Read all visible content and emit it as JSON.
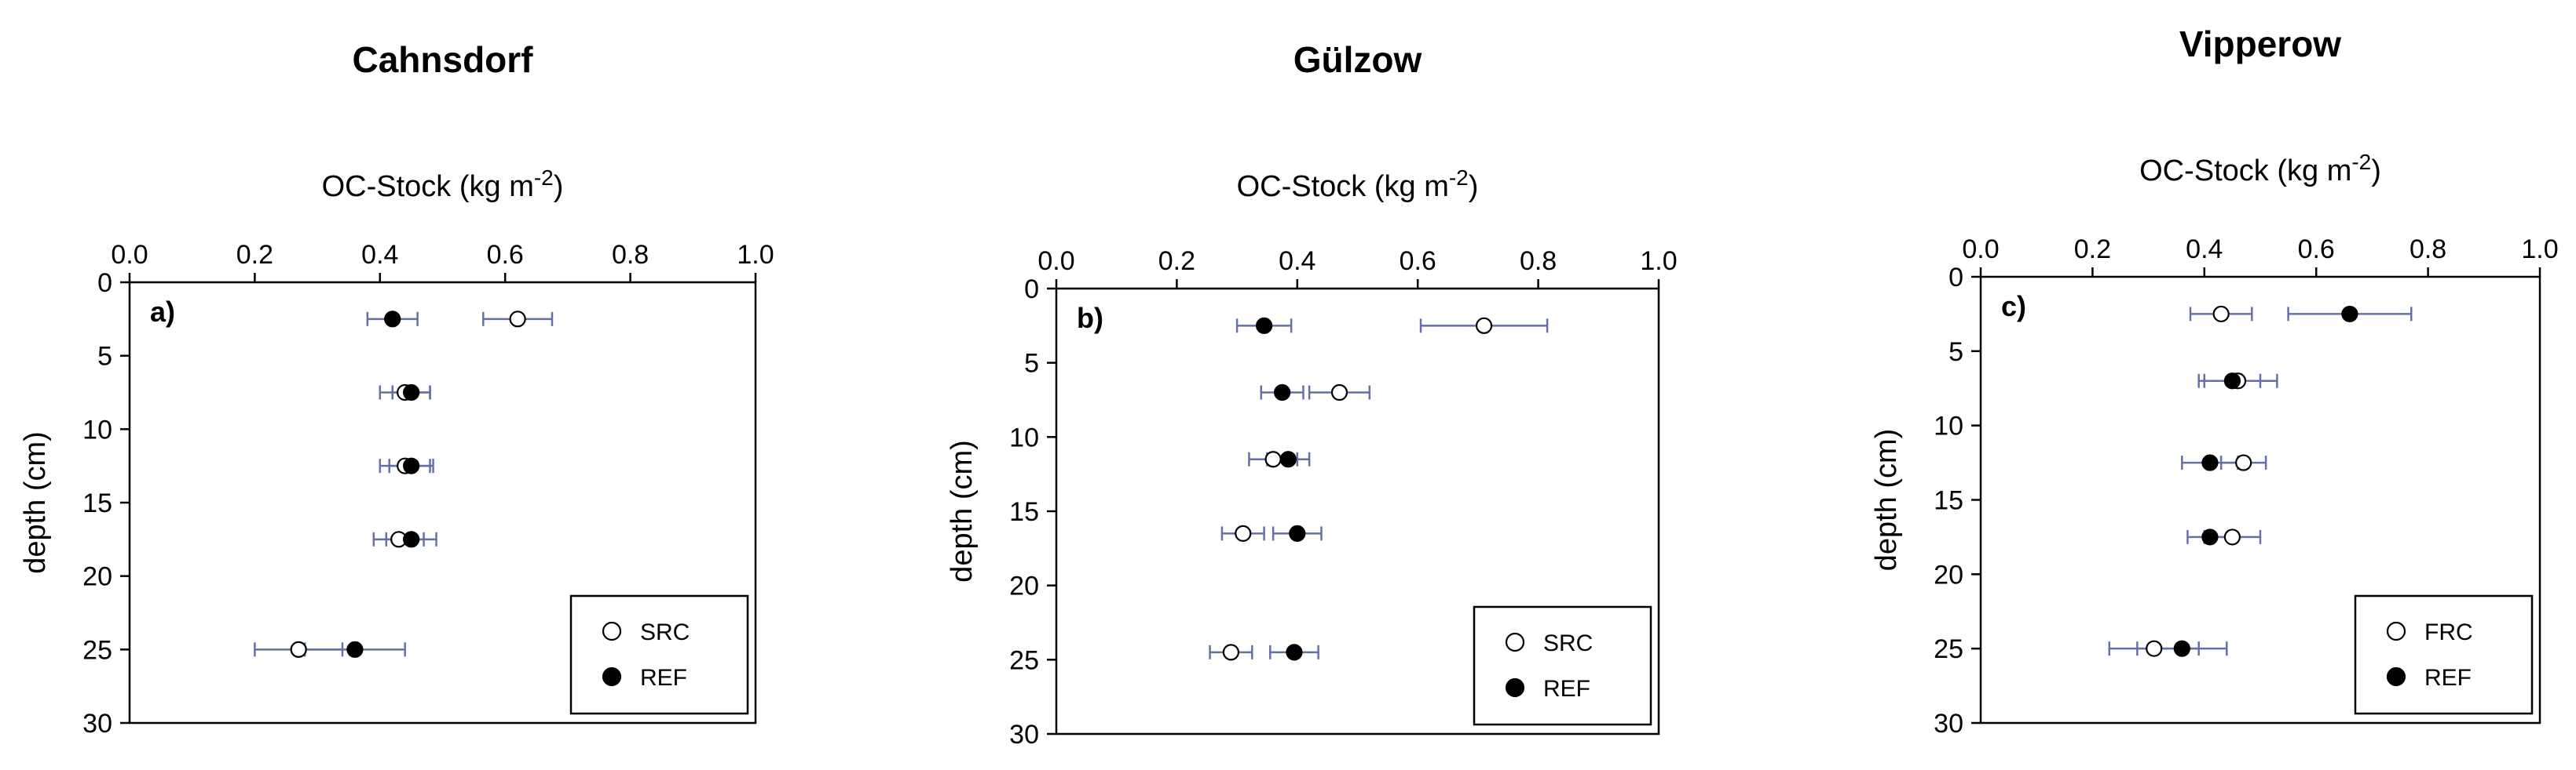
{
  "chart_data": [
    {
      "type": "scatter",
      "title": "Cahnsdorf",
      "panel_label": "a)",
      "xlabel": "OC-Stock (kg m",
      "xlabel_sup": "-2",
      "xlabel_end": ")",
      "ylabel": "depth (cm)",
      "xlim": [
        0.0,
        1.0
      ],
      "ylim": [
        0,
        30
      ],
      "y_inverted": true,
      "x_ticks": [
        "0.0",
        "0.2",
        "0.4",
        "0.6",
        "0.8",
        "1.0"
      ],
      "y_ticks": [
        "0",
        "5",
        "10",
        "15",
        "20",
        "25",
        "30"
      ],
      "legend_position": "bottom-right",
      "series": [
        {
          "name": "SRC",
          "marker": "open-circle",
          "points": [
            {
              "x": 0.62,
              "y": 2.5,
              "err": 0.055
            },
            {
              "x": 0.44,
              "y": 7.5,
              "err": 0.04
            },
            {
              "x": 0.44,
              "y": 12.5,
              "err": 0.04
            },
            {
              "x": 0.43,
              "y": 17.5,
              "err": 0.04
            },
            {
              "x": 0.27,
              "y": 25.0,
              "err": 0.07
            }
          ]
        },
        {
          "name": "REF",
          "marker": "filled-circle",
          "points": [
            {
              "x": 0.42,
              "y": 2.5,
              "err": 0.04
            },
            {
              "x": 0.45,
              "y": 7.5,
              "err": 0.03
            },
            {
              "x": 0.45,
              "y": 12.5,
              "err": 0.035
            },
            {
              "x": 0.45,
              "y": 17.5,
              "err": 0.04
            },
            {
              "x": 0.36,
              "y": 25.0,
              "err": 0.08
            }
          ]
        }
      ]
    },
    {
      "type": "scatter",
      "title": "Gülzow",
      "panel_label": "b)",
      "xlabel": "OC-Stock (kg m",
      "xlabel_sup": "-2",
      "xlabel_end": ")",
      "ylabel": "depth (cm)",
      "xlim": [
        0.0,
        1.0
      ],
      "ylim": [
        0,
        30
      ],
      "y_inverted": true,
      "x_ticks": [
        "0.0",
        "0.2",
        "0.4",
        "0.6",
        "0.8",
        "1.0"
      ],
      "y_ticks": [
        "0",
        "5",
        "10",
        "15",
        "20",
        "25",
        "30"
      ],
      "legend_position": "bottom-right",
      "series": [
        {
          "name": "SRC",
          "marker": "open-circle",
          "points": [
            {
              "x": 0.71,
              "y": 2.5,
              "err": 0.105
            },
            {
              "x": 0.47,
              "y": 7.0,
              "err": 0.05
            },
            {
              "x": 0.36,
              "y": 11.5,
              "err": 0.04
            },
            {
              "x": 0.31,
              "y": 16.5,
              "err": 0.035
            },
            {
              "x": 0.29,
              "y": 24.5,
              "err": 0.035
            }
          ]
        },
        {
          "name": "REF",
          "marker": "filled-circle",
          "points": [
            {
              "x": 0.345,
              "y": 2.5,
              "err": 0.045
            },
            {
              "x": 0.375,
              "y": 7.0,
              "err": 0.035
            },
            {
              "x": 0.385,
              "y": 11.5,
              "err": 0.035
            },
            {
              "x": 0.4,
              "y": 16.5,
              "err": 0.04
            },
            {
              "x": 0.395,
              "y": 24.5,
              "err": 0.04
            }
          ]
        }
      ]
    },
    {
      "type": "scatter",
      "title": "Vipperow",
      "panel_label": "c)",
      "xlabel": "OC-Stock (kg m",
      "xlabel_sup": "-2",
      "xlabel_end": ")",
      "ylabel": "depth (cm)",
      "xlim": [
        0.0,
        1.0
      ],
      "ylim": [
        0,
        30
      ],
      "y_inverted": true,
      "x_ticks": [
        "0.0",
        "0.2",
        "0.4",
        "0.6",
        "0.8",
        "1.0"
      ],
      "y_ticks": [
        "0",
        "5",
        "10",
        "15",
        "20",
        "25",
        "30"
      ],
      "legend_position": "bottom-right",
      "series": [
        {
          "name": "FRC",
          "marker": "open-circle",
          "points": [
            {
              "x": 0.43,
              "y": 2.5,
              "err": 0.055
            },
            {
              "x": 0.46,
              "y": 7.0,
              "err": 0.07
            },
            {
              "x": 0.47,
              "y": 12.5,
              "err": 0.04
            },
            {
              "x": 0.45,
              "y": 17.5,
              "err": 0.05
            },
            {
              "x": 0.31,
              "y": 25.0,
              "err": 0.08
            }
          ]
        },
        {
          "name": "REF",
          "marker": "filled-circle",
          "points": [
            {
              "x": 0.66,
              "y": 2.5,
              "err": 0.11
            },
            {
              "x": 0.45,
              "y": 7.0,
              "err": 0.05
            },
            {
              "x": 0.41,
              "y": 12.5,
              "err": 0.05
            },
            {
              "x": 0.41,
              "y": 17.5,
              "err": 0.04
            },
            {
              "x": 0.36,
              "y": 25.0,
              "err": 0.08
            }
          ]
        }
      ]
    }
  ],
  "colors": {
    "errorbar": "#6670a8",
    "axis": "#000000",
    "marker_fill": "#000000",
    "marker_open": "#ffffff"
  }
}
